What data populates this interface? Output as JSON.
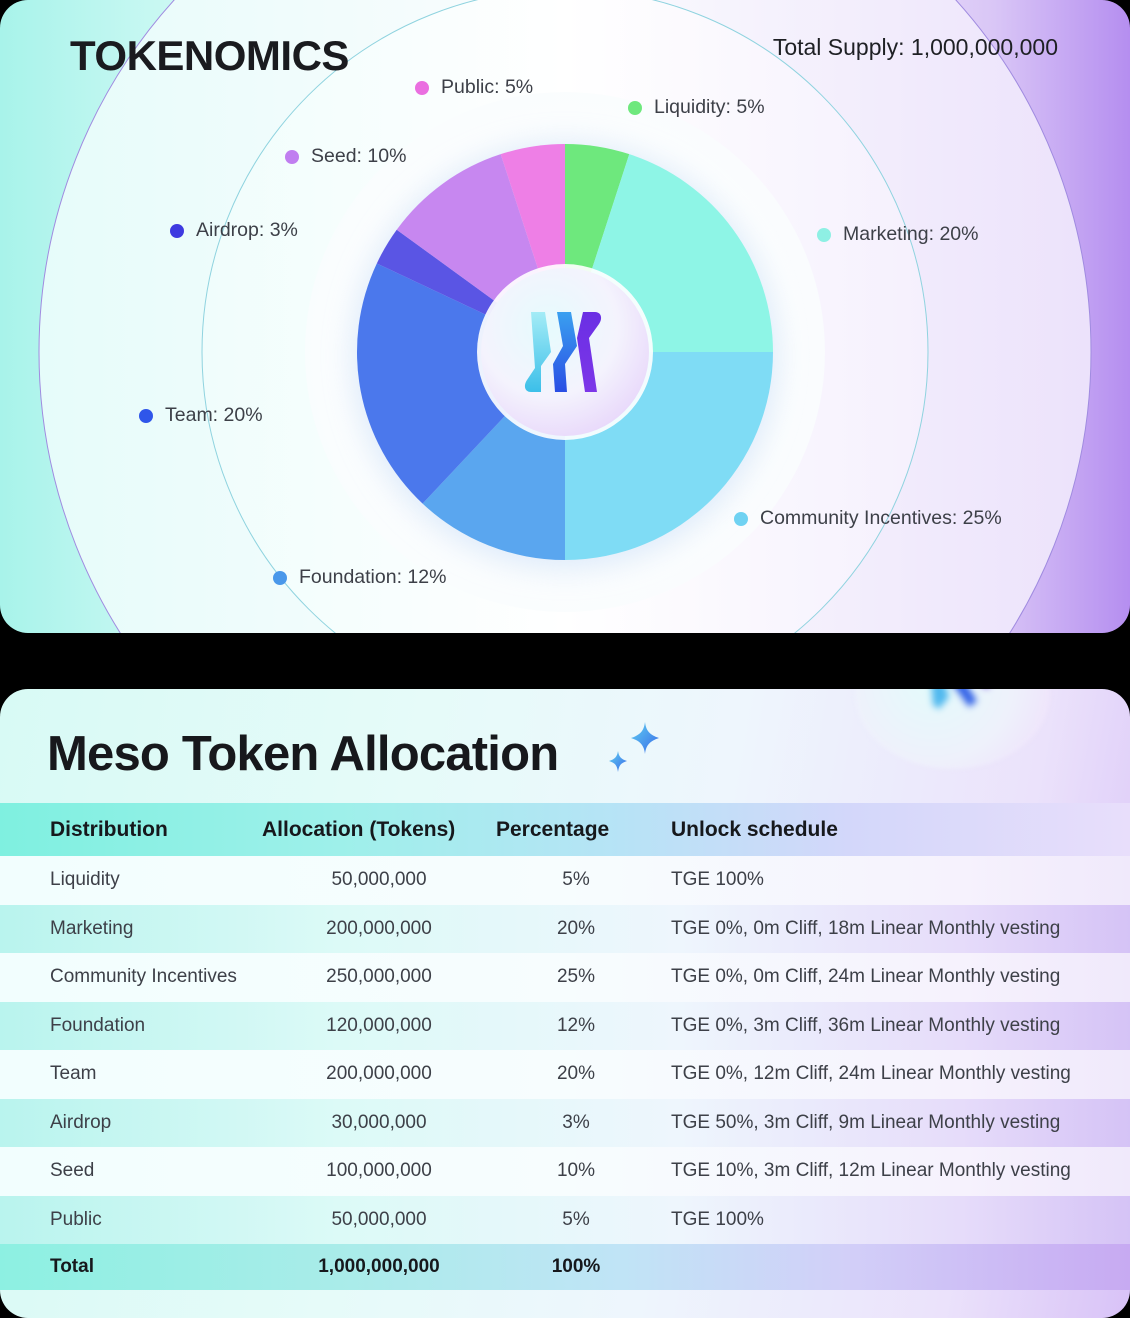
{
  "tokenomics": {
    "title": "TOKENOMICS",
    "total_supply_label": "Total Supply: 1,000,000,000",
    "center_logo": "meso-logo-icon"
  },
  "chart_data": {
    "type": "pie",
    "title": "TOKENOMICS",
    "subtitle": "Total Supply: 1,000,000,000",
    "donut": true,
    "start_angle_deg": 0,
    "direction": "clockwise",
    "categories": [
      "Liquidity",
      "Marketing",
      "Community Incentives",
      "Foundation",
      "Team",
      "Airdrop",
      "Seed",
      "Public"
    ],
    "values": [
      5,
      20,
      25,
      12,
      20,
      3,
      10,
      5
    ],
    "unit": "%",
    "colors": [
      "#6ee87d",
      "#8ef5e6",
      "#7fdcf5",
      "#5aa6ef",
      "#4b78ec",
      "#5a55e4",
      "#c787f0",
      "#ee7fe6"
    ],
    "legend_labels": [
      "Liquidity: 5%",
      "Marketing: 20%",
      "Community Incentives: 25%",
      "Foundation: 12%",
      "Team: 20%",
      "Airdrop: 3%",
      "Seed: 10%",
      "Public: 5%"
    ],
    "legend_dot_colors": [
      "#6ee87d",
      "#8ef0e4",
      "#6fd2f2",
      "#4a98ea",
      "#2f56ea",
      "#3e3ae0",
      "#c07ef0",
      "#ea6fe0"
    ],
    "legend_position": "scattered-around-pie"
  },
  "allocation": {
    "title": "Meso Token Allocation",
    "headers": [
      "Distribution",
      "Allocation (Tokens)",
      "Percentage",
      "Unlock schedule"
    ],
    "rows": [
      {
        "name": "Liquidity",
        "tokens": "50,000,000",
        "pct": "5%",
        "unlock": "TGE 100%"
      },
      {
        "name": "Marketing",
        "tokens": "200,000,000",
        "pct": "20%",
        "unlock": "TGE 0%, 0m Cliff, 18m Linear Monthly vesting"
      },
      {
        "name": "Community Incentives",
        "tokens": "250,000,000",
        "pct": "25%",
        "unlock": "TGE 0%, 0m Cliff, 24m Linear Monthly vesting"
      },
      {
        "name": "Foundation",
        "tokens": "120,000,000",
        "pct": "12%",
        "unlock": "TGE 0%, 3m Cliff, 36m Linear Monthly vesting"
      },
      {
        "name": "Team",
        "tokens": "200,000,000",
        "pct": "20%",
        "unlock": "TGE 0%, 12m Cliff, 24m Linear Monthly vesting"
      },
      {
        "name": "Airdrop",
        "tokens": "30,000,000",
        "pct": "3%",
        "unlock": "TGE 50%, 3m Cliff, 9m Linear Monthly vesting"
      },
      {
        "name": "Seed",
        "tokens": "100,000,000",
        "pct": "10%",
        "unlock": "TGE 10%, 3m Cliff, 12m Linear Monthly vesting"
      },
      {
        "name": "Public",
        "tokens": "50,000,000",
        "pct": "5%",
        "unlock": "TGE 100%"
      }
    ],
    "total": {
      "name": "Total",
      "tokens": "1,000,000,000",
      "pct": "100%",
      "unlock": ""
    }
  }
}
